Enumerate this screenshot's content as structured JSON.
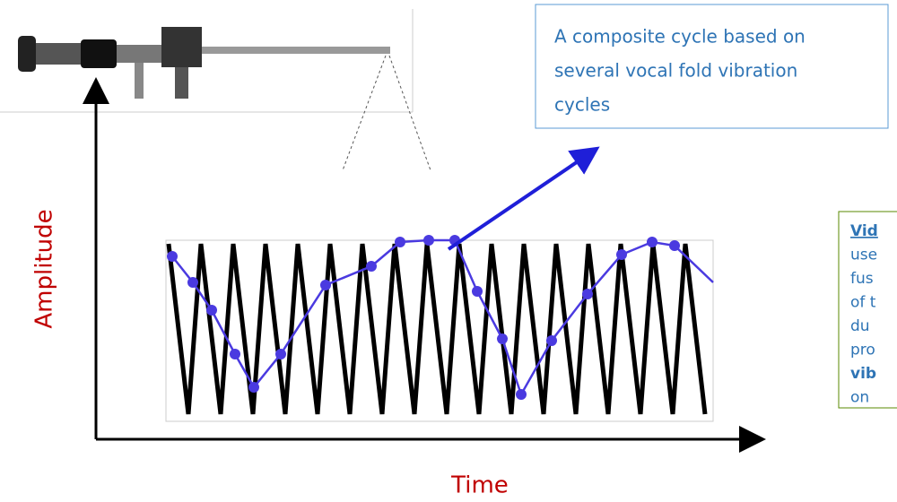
{
  "axes": {
    "y_label": "Amplitude",
    "x_label": "Time"
  },
  "callout": {
    "lines": [
      "A composite cycle based on",
      "several vocal fold vibration",
      "cycles"
    ]
  },
  "side_note": {
    "lines": [
      "Vid",
      "use",
      "fus",
      "of t",
      "du",
      "pro",
      "vib",
      "on"
    ]
  }
}
